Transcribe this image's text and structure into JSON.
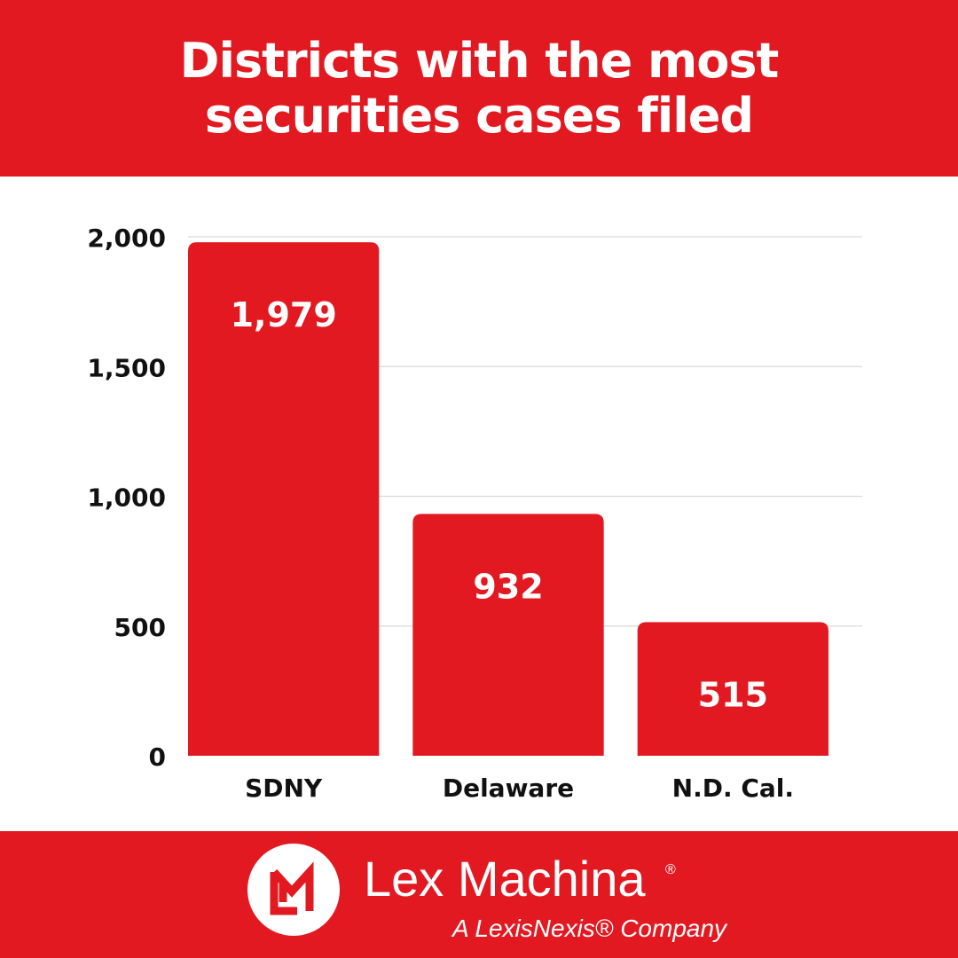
{
  "colors": {
    "brand_red": "#e31921",
    "white": "#ffffff",
    "gridline": "#d9d9d9",
    "text_dark": "#111111"
  },
  "header": {
    "title_line1": "Districts with the most",
    "title_line2": "securities cases filed"
  },
  "chart_data": {
    "type": "bar",
    "title": "Districts with the most securities cases filed",
    "categories": [
      "SDNY",
      "Delaware",
      "N.D. Cal."
    ],
    "values": [
      1979,
      932,
      515
    ],
    "value_labels": [
      "1,979",
      "932",
      "515"
    ],
    "yticks": [
      0,
      500,
      1000,
      1500,
      2000
    ],
    "ytick_labels": [
      "0",
      "500",
      "1,000",
      "1,500",
      "2,000"
    ],
    "ylim": [
      0,
      2000
    ],
    "xlabel": "",
    "ylabel": "",
    "grid": true,
    "legend": "none"
  },
  "footer": {
    "logo_icon": "lex-machina-lm-monogram-icon",
    "brand_name": "Lex Machina",
    "registered_mark": "®",
    "tagline": "A LexisNexis® Company"
  }
}
